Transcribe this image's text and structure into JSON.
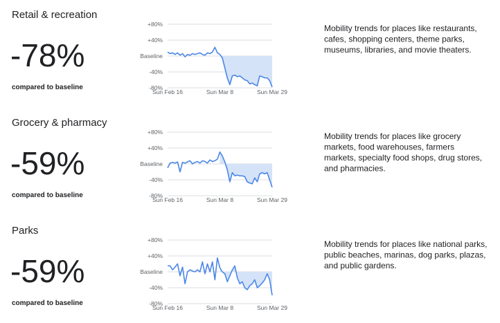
{
  "chart_data": [
    {
      "type": "line",
      "title": "Retail & recreation",
      "headline": "-78%",
      "subtitle": "compared to baseline",
      "description": [
        "Mobility trends for places like restaurants,",
        "cafes, shopping centers, theme parks,",
        "museums, libraries, and movie theaters."
      ],
      "categories": [
        "Sun Feb 16",
        null,
        null,
        null,
        null,
        null,
        null,
        null,
        null,
        null,
        null,
        null,
        null,
        null,
        null,
        null,
        null,
        null,
        null,
        null,
        null,
        "Sun Mar 8",
        null,
        null,
        null,
        null,
        null,
        null,
        null,
        null,
        null,
        null,
        null,
        null,
        null,
        null,
        null,
        null,
        null,
        null,
        null,
        null,
        "Sun Mar 29"
      ],
      "values": [
        10,
        6,
        8,
        4,
        8,
        2,
        6,
        -2,
        4,
        2,
        6,
        4,
        6,
        8,
        4,
        2,
        8,
        6,
        10,
        22,
        8,
        4,
        -5,
        -30,
        -55,
        -72,
        -50,
        -48,
        -52,
        -50,
        -55,
        -60,
        -62,
        -70,
        -68,
        -72,
        -75,
        -50,
        -52,
        -55,
        -55,
        -62,
        -78
      ],
      "color": "#4a86e8",
      "ylim": [
        -80,
        80
      ],
      "yticks": [
        {
          "value": -80,
          "label": "-80%"
        },
        {
          "value": -40,
          "label": "-40%"
        },
        {
          "value": 0,
          "label": "Baseline"
        },
        {
          "value": 40,
          "label": "+40%"
        },
        {
          "value": 80,
          "label": "+80%"
        }
      ],
      "grid": true
    },
    {
      "type": "line",
      "title": "Grocery & pharmacy",
      "headline": "-59%",
      "subtitle": "compared to baseline",
      "description": [
        "Mobility trends for places like grocery",
        "markets, food warehouses, farmers",
        "markets, specialty food shops, drug stores,",
        "and pharmacies."
      ],
      "categories": [
        "Sun Feb 16",
        null,
        null,
        null,
        null,
        null,
        null,
        null,
        null,
        null,
        null,
        null,
        null,
        null,
        null,
        null,
        null,
        null,
        null,
        null,
        null,
        "Sun Mar 8",
        null,
        null,
        null,
        null,
        null,
        null,
        null,
        null,
        null,
        null,
        null,
        null,
        null,
        null,
        null,
        null,
        null,
        null,
        null,
        null,
        "Sun Mar 29"
      ],
      "values": [
        -10,
        2,
        4,
        2,
        5,
        -20,
        4,
        2,
        5,
        8,
        0,
        4,
        6,
        2,
        8,
        6,
        2,
        10,
        6,
        8,
        12,
        30,
        20,
        5,
        -15,
        -45,
        -22,
        -30,
        -28,
        -30,
        -30,
        -32,
        -45,
        -48,
        -50,
        -35,
        -45,
        -25,
        -22,
        -25,
        -22,
        -40,
        -59
      ],
      "color": "#4a86e8",
      "ylim": [
        -80,
        80
      ],
      "yticks": [
        {
          "value": -80,
          "label": "-80%"
        },
        {
          "value": -40,
          "label": "-40%"
        },
        {
          "value": 0,
          "label": "Baseline"
        },
        {
          "value": 40,
          "label": "+40%"
        },
        {
          "value": 80,
          "label": "+80%"
        }
      ],
      "grid": true
    },
    {
      "type": "line",
      "title": "Parks",
      "headline": "-59%",
      "subtitle": "compared to baseline",
      "description": [
        "Mobility trends for places like national parks,",
        "public beaches, marinas, dog parks, plazas,",
        "and public gardens."
      ],
      "categories": [
        "Sun Feb 16",
        null,
        null,
        null,
        null,
        null,
        null,
        null,
        null,
        null,
        null,
        null,
        null,
        null,
        null,
        null,
        null,
        null,
        null,
        null,
        null,
        "Sun Mar 8",
        null,
        null,
        null,
        null,
        null,
        null,
        null,
        null,
        null,
        null,
        null,
        null,
        null,
        null,
        null,
        null,
        null,
        null,
        null,
        null,
        "Sun Mar 29"
      ],
      "values": [
        15,
        15,
        5,
        12,
        20,
        -10,
        12,
        -30,
        0,
        5,
        2,
        0,
        5,
        0,
        25,
        -5,
        20,
        0,
        25,
        -20,
        35,
        10,
        0,
        -5,
        -25,
        -10,
        5,
        15,
        -15,
        -30,
        -25,
        -40,
        -45,
        -35,
        -30,
        -20,
        -40,
        -35,
        -28,
        -20,
        -5,
        -20,
        -59
      ],
      "color": "#4a86e8",
      "ylim": [
        -80,
        80
      ],
      "yticks": [
        {
          "value": -80,
          "label": "-80%"
        },
        {
          "value": -40,
          "label": "-40%"
        },
        {
          "value": 0,
          "label": "Baseline"
        },
        {
          "value": 40,
          "label": "+40%"
        },
        {
          "value": 80,
          "label": "+80%"
        }
      ],
      "grid": true
    }
  ]
}
